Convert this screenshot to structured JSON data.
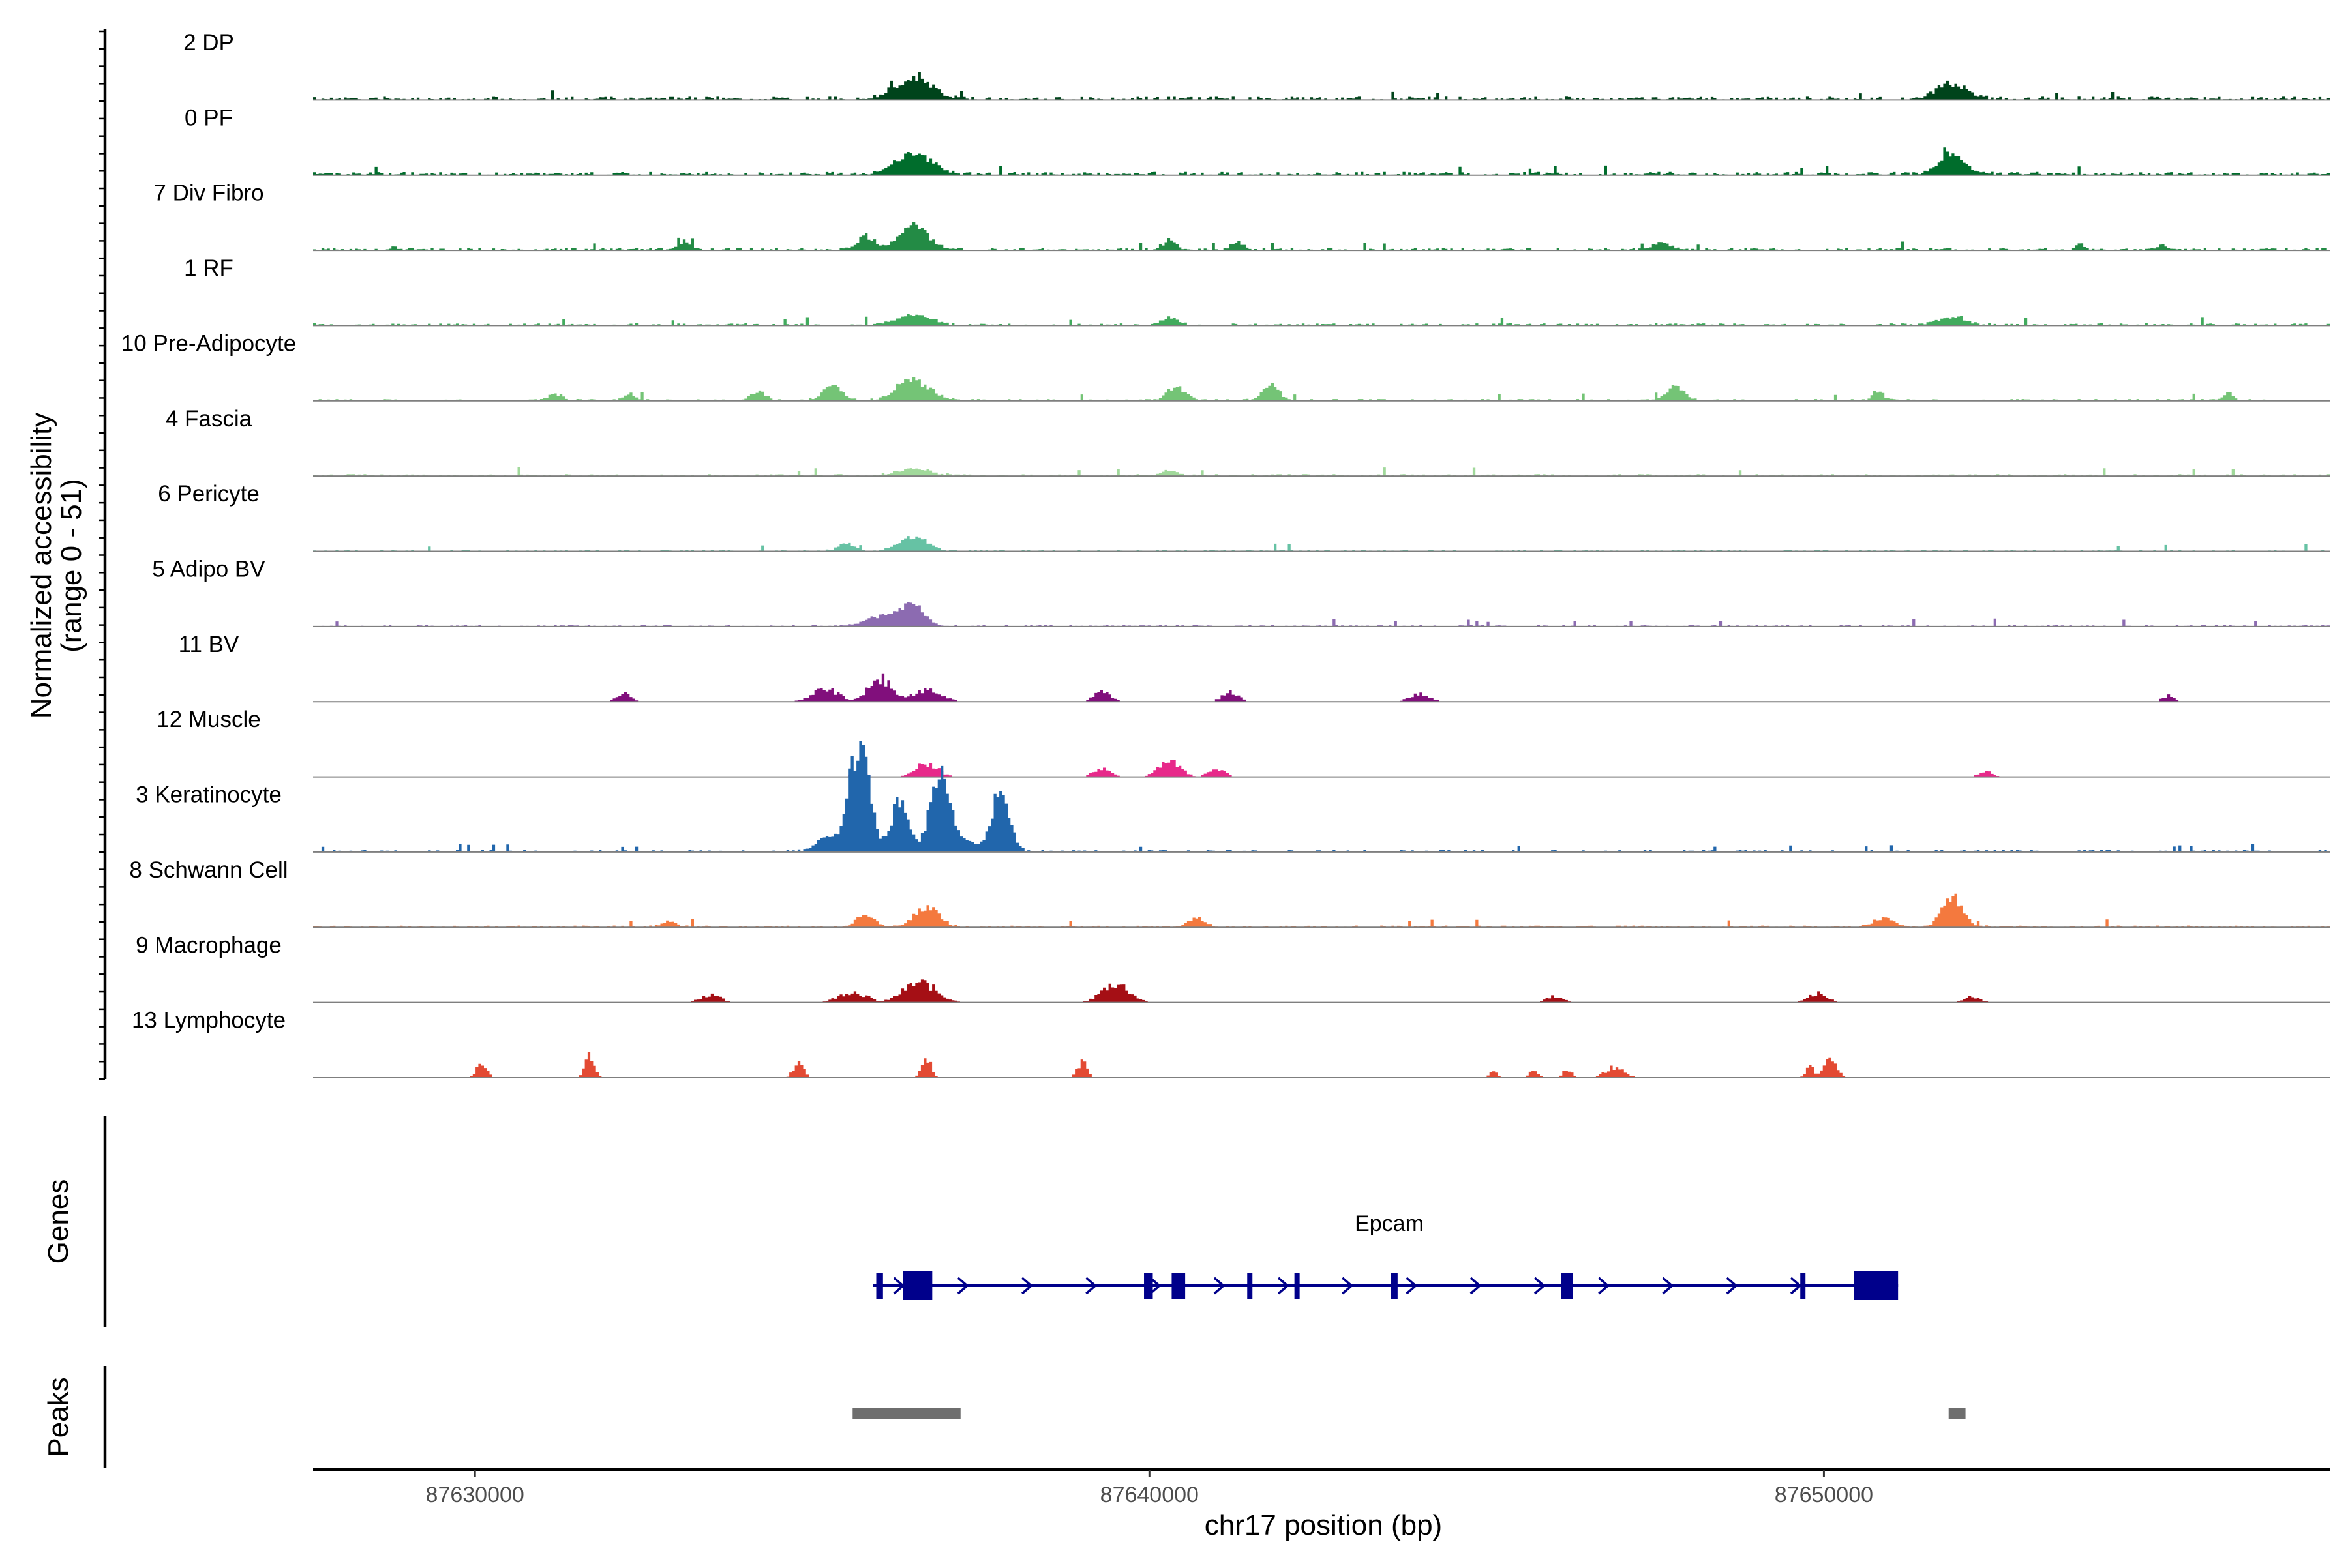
{
  "chart_data": {
    "type": "area",
    "title": "",
    "coverage_panel": {
      "ylabel_line1": "Normalized accessibility",
      "ylabel_line2": "(range 0 - 51)",
      "ylim": [
        0,
        51
      ],
      "tracks": [
        {
          "name": "2 DP",
          "color": "#00441b",
          "peaks": [
            [
              87636500,
              25,
              260
            ],
            [
              87651900,
              17,
              220
            ]
          ],
          "baseline": 2.2,
          "sparse": false,
          "seed": 11
        },
        {
          "name": "0 PF",
          "color": "#006d2c",
          "peaks": [
            [
              87636500,
              22,
              260
            ],
            [
              87651900,
              21,
              200
            ]
          ],
          "baseline": 2.2,
          "sparse": false,
          "seed": 23
        },
        {
          "name": "7 Div Fibro",
          "color": "#238b45",
          "peaks": [
            [
              87636500,
              26,
              220
            ],
            [
              87635800,
              14,
              120
            ],
            [
              87633100,
              9,
              90
            ],
            [
              87640300,
              10,
              100
            ],
            [
              87641300,
              8,
              90
            ],
            [
              87647600,
              8,
              120
            ],
            [
              87653800,
              7,
              60
            ],
            [
              87655000,
              6,
              60
            ],
            [
              87628800,
              5,
              40
            ]
          ],
          "baseline": 1.6,
          "sparse": false,
          "seed": 37
        },
        {
          "name": "1 RF",
          "color": "#41ab5d",
          "peaks": [
            [
              87636500,
              11,
              240
            ],
            [
              87640300,
              8,
              120
            ],
            [
              87651900,
              9,
              200
            ]
          ],
          "baseline": 1.5,
          "sparse": false,
          "seed": 41
        },
        {
          "name": "10 Pre-Adipocyte",
          "color": "#74c476",
          "peaks": [
            [
              87636500,
              22,
              230
            ],
            [
              87635300,
              15,
              140
            ],
            [
              87634200,
              10,
              100
            ],
            [
              87640400,
              14,
              140
            ],
            [
              87641800,
              17,
              120
            ],
            [
              87647800,
              16,
              120
            ],
            [
              87650800,
              10,
              80
            ],
            [
              87656000,
              8,
              60
            ],
            [
              87631200,
              7,
              100
            ],
            [
              87632300,
              7,
              80
            ]
          ],
          "baseline": 1.2,
          "sparse": false,
          "seed": 53
        },
        {
          "name": "4 Fascia",
          "color": "#a1d99b",
          "peaks": [
            [
              87636500,
              7,
              240
            ],
            [
              87640300,
              6,
              100
            ]
          ],
          "baseline": 1.3,
          "sparse": false,
          "seed": 61
        },
        {
          "name": "6 Pericyte",
          "color": "#66c2a4",
          "peaks": [
            [
              87636500,
              16,
              200
            ],
            [
              87635500,
              8,
              120
            ]
          ],
          "baseline": 1.0,
          "sparse": false,
          "seed": 67
        },
        {
          "name": "5 Adipo BV",
          "color": "#8c6bb1",
          "peaks": [
            [
              87636500,
              21,
              170
            ],
            [
              87636100,
              12,
              260
            ]
          ],
          "baseline": 1.0,
          "sparse": false,
          "seed": 71
        },
        {
          "name": "11 BV",
          "color": "#810f7c",
          "peaks": [
            [
              87636000,
              27,
              160
            ],
            [
              87635200,
              14,
              200
            ],
            [
              87636700,
              14,
              200
            ],
            [
              87639300,
              11,
              120
            ],
            [
              87641200,
              10,
              120
            ],
            [
              87644000,
              9,
              140
            ],
            [
              87632200,
              9,
              100
            ],
            [
              87655100,
              7,
              80
            ]
          ],
          "baseline": 0,
          "sparse": true,
          "seed": 79
        },
        {
          "name": "12 Muscle",
          "color": "#e7298a",
          "peaks": [
            [
              87636700,
              15,
              160
            ],
            [
              87640300,
              17,
              160
            ],
            [
              87639300,
              10,
              120
            ],
            [
              87641000,
              9,
              120
            ],
            [
              87652400,
              7,
              100
            ],
            [
              87635700,
              6,
              100
            ]
          ],
          "baseline": 0,
          "sparse": true,
          "seed": 83
        },
        {
          "name": "3 Keratinocyte",
          "color": "#2166ac",
          "peaks": [
            [
              87635700,
              120,
              150
            ],
            [
              87636900,
              90,
              150
            ],
            [
              87637800,
              68,
              130
            ],
            [
              87636300,
              56,
              120
            ],
            [
              87635200,
              14,
              160
            ],
            [
              87637300,
              10,
              130
            ]
          ],
          "baseline": 1.5,
          "sparse": false,
          "seed": 89
        },
        {
          "name": "8 Schwann Cell",
          "color": "#f4793e",
          "peaks": [
            [
              87651900,
              33,
              150
            ],
            [
              87636700,
              22,
              180
            ],
            [
              87635800,
              12,
              140
            ],
            [
              87640700,
              10,
              120
            ],
            [
              87650900,
              10,
              140
            ],
            [
              87632900,
              6,
              100
            ]
          ],
          "baseline": 1.2,
          "sparse": false,
          "seed": 97
        },
        {
          "name": "9 Macrophage",
          "color": "#a50f15",
          "peaks": [
            [
              87636600,
              22,
              240
            ],
            [
              87639500,
              21,
              200
            ],
            [
              87635600,
              12,
              200
            ],
            [
              87633500,
              8,
              150
            ],
            [
              87649900,
              10,
              140
            ],
            [
              87646000,
              7,
              120
            ],
            [
              87652200,
              6,
              120
            ]
          ],
          "baseline": 0,
          "sparse": true,
          "seed": 101
        },
        {
          "name": "13 Lymphocyte",
          "color": "#e34a33",
          "peaks": [
            [
              87630100,
              18,
              70
            ],
            [
              87631700,
              24,
              70
            ],
            [
              87634800,
              20,
              70
            ],
            [
              87636700,
              22,
              70
            ],
            [
              87639000,
              18,
              70
            ],
            [
              87650100,
              22,
              90
            ],
            [
              87649800,
              14,
              60
            ],
            [
              87646900,
              12,
              140
            ],
            [
              87646200,
              10,
              60
            ],
            [
              87645700,
              8,
              60
            ],
            [
              87645100,
              9,
              50
            ]
          ],
          "baseline": 0,
          "sparse": true,
          "seed": 107
        }
      ]
    },
    "genes_panel": {
      "ylabel": "Genes",
      "gene_name": "Epcam",
      "strand": "+",
      "color": "#00008b",
      "start": 87635900,
      "end": 87651100,
      "exons": [
        [
          87635950,
          87636050
        ],
        [
          87636350,
          87636780
        ],
        [
          87639920,
          87640050
        ],
        [
          87640330,
          87640530
        ],
        [
          87641450,
          87641520
        ],
        [
          87642150,
          87642220
        ],
        [
          87643580,
          87643680
        ],
        [
          87646100,
          87646280
        ],
        [
          87649650,
          87649700
        ],
        [
          87650450,
          87651100
        ]
      ]
    },
    "peaks_panel": {
      "ylabel": "Peaks",
      "color": "#6e6e6e",
      "regions": [
        [
          87635600,
          87637200
        ],
        [
          87651850,
          87652100
        ]
      ]
    },
    "x_axis": {
      "xlabel": "chr17 position (bp)",
      "xlim": [
        87627600,
        87657500
      ],
      "ticks": [
        87630000,
        87640000,
        87650000
      ],
      "tick_labels": [
        "87630000",
        "87640000",
        "87650000"
      ]
    }
  }
}
